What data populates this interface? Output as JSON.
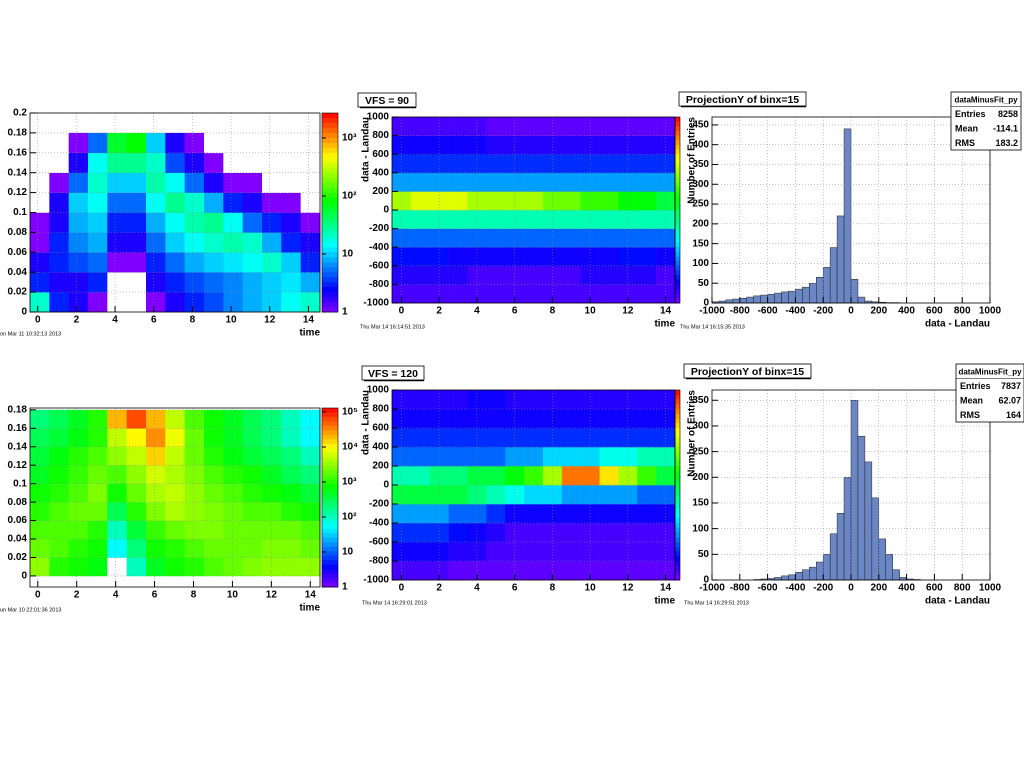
{
  "chart_data": [
    {
      "type": "heatmap",
      "xlim": [
        -0.4,
        14.6
      ],
      "xticks": [
        0,
        2,
        4,
        6,
        8,
        10,
        12,
        14
      ],
      "ylim": [
        0,
        0.2
      ],
      "yticks": [
        0,
        0.02,
        0.04,
        0.06,
        0.08,
        0.1,
        0.12,
        0.14,
        0.16,
        0.18,
        0.2
      ],
      "yrange": [
        0,
        0.18
      ],
      "xlabel": "time",
      "zlog": true,
      "zlim": [
        1,
        2700
      ],
      "zticks": [
        1,
        10,
        {
          "value": 100,
          "label": "10²"
        },
        {
          "value": 1000,
          "label": "10³"
        }
      ],
      "grid": true,
      "timestamp": "on Mar 11 10:32:13 2013",
      "z": [
        [
          20,
          3,
          2,
          1,
          0,
          0,
          1,
          2,
          3,
          4,
          6,
          8,
          10,
          15,
          20
        ],
        [
          3,
          2,
          2,
          3,
          0,
          0,
          2,
          3,
          4,
          5,
          6,
          8,
          10,
          12,
          8
        ],
        [
          2,
          3,
          4,
          5,
          1,
          1,
          3,
          5,
          8,
          10,
          12,
          15,
          20,
          10,
          3
        ],
        [
          1,
          3,
          6,
          8,
          2,
          2,
          5,
          10,
          15,
          20,
          25,
          20,
          8,
          3,
          2
        ],
        [
          1,
          2,
          8,
          10,
          3,
          3,
          8,
          15,
          25,
          30,
          15,
          5,
          3,
          2,
          1
        ],
        [
          0,
          2,
          10,
          15,
          5,
          5,
          15,
          30,
          20,
          8,
          3,
          2,
          1,
          1,
          0
        ],
        [
          0,
          1,
          5,
          20,
          10,
          10,
          25,
          15,
          5,
          2,
          1,
          1,
          0,
          0,
          0
        ],
        [
          0,
          0,
          2,
          15,
          30,
          30,
          20,
          4,
          2,
          1,
          0,
          0,
          0,
          0,
          0
        ],
        [
          0,
          0,
          1,
          5,
          60,
          80,
          10,
          2,
          1,
          0,
          0,
          0,
          0,
          0,
          0
        ]
      ]
    },
    {
      "type": "heatmap",
      "title": "VFS = 90",
      "xlim": [
        -0.5,
        14.5
      ],
      "xticks": [
        0,
        2,
        4,
        6,
        8,
        10,
        12,
        14
      ],
      "ylim": [
        -1000,
        1000
      ],
      "yticks": [
        -1000,
        -800,
        -600,
        -400,
        -200,
        0,
        200,
        400,
        600,
        800,
        1000
      ],
      "xlabel": "time",
      "ylabel": "data - Landau",
      "zlog": false,
      "zlim": [
        0,
        100
      ],
      "grid": true,
      "timestamp": "Thu Mar 14 16:14:51 2013",
      "z": [
        [
          5,
          5,
          5,
          5,
          5,
          5,
          5,
          5,
          5,
          5,
          5,
          5,
          5,
          5,
          5
        ],
        [
          8,
          8,
          8,
          8,
          5,
          5,
          5,
          5,
          5,
          5,
          8,
          8,
          8,
          8,
          5
        ],
        [
          12,
          12,
          12,
          10,
          10,
          10,
          10,
          10,
          10,
          10,
          10,
          10,
          12,
          12,
          10
        ],
        [
          20,
          20,
          20,
          20,
          20,
          20,
          20,
          20,
          20,
          20,
          20,
          20,
          20,
          20,
          20
        ],
        [
          40,
          40,
          40,
          40,
          40,
          40,
          40,
          40,
          40,
          40,
          40,
          40,
          40,
          40,
          40
        ],
        [
          70,
          75,
          75,
          75,
          70,
          70,
          70,
          70,
          65,
          65,
          60,
          60,
          55,
          55,
          50
        ],
        [
          25,
          25,
          25,
          25,
          25,
          25,
          25,
          25,
          25,
          25,
          25,
          25,
          25,
          25,
          25
        ],
        [
          15,
          15,
          15,
          15,
          15,
          15,
          15,
          15,
          15,
          15,
          15,
          15,
          15,
          15,
          15
        ],
        [
          10,
          10,
          10,
          10,
          10,
          8,
          8,
          8,
          8,
          8,
          8,
          8,
          8,
          8,
          8
        ],
        [
          5,
          5,
          5,
          5,
          5,
          3,
          3,
          3,
          3,
          3,
          3,
          3,
          3,
          3,
          3
        ]
      ]
    },
    {
      "type": "histogram",
      "title": "ProjectionY of binx=15",
      "color": "#6a86c4",
      "xlim": [
        -1000,
        1000
      ],
      "xticks": [
        -1000,
        -800,
        -600,
        -400,
        -200,
        0,
        200,
        400,
        600,
        800,
        1000
      ],
      "ylim": [
        0,
        470
      ],
      "yticks": [
        0,
        50,
        100,
        150,
        200,
        250,
        300,
        350,
        400,
        450
      ],
      "xlabel": "data - Landau",
      "ylabel": "Number of Entries",
      "grid": true,
      "timestamp": "Thu Mar 14 16:15:35 2013",
      "stats": {
        "name": "dataMinusFit_py",
        "rows": [
          {
            "label": "Entries",
            "value": 8258
          },
          {
            "label": "Mean",
            "value": -114.1
          },
          {
            "label": "RMS",
            "value": 183.2
          }
        ]
      },
      "bins": [
        -1000,
        -950,
        -900,
        -850,
        -800,
        -750,
        -700,
        -650,
        -600,
        -550,
        -500,
        -450,
        -400,
        -350,
        -300,
        -250,
        -200,
        -150,
        -100,
        -50,
        0,
        50,
        100,
        150,
        200,
        250,
        300,
        350,
        400,
        450,
        500,
        550,
        600,
        650,
        700,
        750,
        800,
        850,
        900,
        950,
        1000
      ],
      "values": [
        3,
        5,
        8,
        10,
        12,
        15,
        18,
        20,
        22,
        25,
        28,
        30,
        35,
        40,
        50,
        65,
        90,
        140,
        220,
        440,
        60,
        15,
        5,
        3,
        2,
        1,
        1,
        0,
        0,
        0,
        0,
        0,
        0,
        0,
        0,
        0,
        0,
        0,
        0,
        0
      ]
    },
    {
      "type": "heatmap",
      "xlim": [
        -0.4,
        14.5
      ],
      "xticks": [
        0,
        2,
        4,
        6,
        8,
        10,
        12,
        14
      ],
      "ylim": [
        -0.012,
        0.182
      ],
      "yticks": [
        0,
        0.02,
        0.04,
        0.06,
        0.08,
        0.1,
        0.12,
        0.14,
        0.16,
        0.18
      ],
      "yrange": [
        0,
        0.18
      ],
      "xlabel": "time",
      "zlog": true,
      "zlim": [
        1,
        130000
      ],
      "zticks": [
        1,
        10,
        {
          "value": 100,
          "label": "10²"
        },
        {
          "value": 1000,
          "label": "10³"
        },
        {
          "value": 10000,
          "label": "10⁴"
        },
        {
          "value": 100000,
          "label": "10⁵"
        }
      ],
      "grid": true,
      "timestamp": "un Mar 10 22:01:36 2013",
      "z": [
        [
          3000,
          1000,
          800,
          600,
          0,
          100,
          500,
          800,
          1000,
          1500,
          2000,
          2500,
          3000,
          3000,
          3000
        ],
        [
          2000,
          1500,
          1000,
          800,
          50,
          200,
          800,
          1000,
          1500,
          2000,
          2000,
          2000,
          2500,
          2500,
          2000
        ],
        [
          1500,
          1500,
          1500,
          1000,
          100,
          400,
          1200,
          2000,
          2500,
          2500,
          2000,
          2000,
          2000,
          2000,
          1500
        ],
        [
          1000,
          1500,
          2000,
          2000,
          300,
          1000,
          2500,
          4000,
          3000,
          2500,
          2000,
          1500,
          1500,
          1000,
          800
        ],
        [
          800,
          1000,
          1500,
          2500,
          800,
          2000,
          4000,
          5000,
          3000,
          2000,
          1500,
          1000,
          800,
          600,
          400
        ],
        [
          500,
          800,
          1200,
          2000,
          1500,
          3000,
          6000,
          4000,
          2500,
          1500,
          1000,
          800,
          500,
          300,
          200
        ],
        [
          400,
          600,
          1000,
          1500,
          3000,
          5000,
          15000,
          5000,
          2000,
          1000,
          600,
          400,
          300,
          200,
          100
        ],
        [
          300,
          400,
          600,
          1000,
          5000,
          10000,
          30000,
          8000,
          2000,
          800,
          500,
          300,
          200,
          100,
          50
        ],
        [
          200,
          300,
          500,
          1000,
          20000,
          60000,
          20000,
          5000,
          1500,
          800,
          500,
          300,
          200,
          100,
          50
        ]
      ]
    },
    {
      "type": "heatmap",
      "title": "VFS = 120",
      "xlim": [
        -0.5,
        14.5
      ],
      "xticks": [
        0,
        2,
        4,
        6,
        8,
        10,
        12,
        14
      ],
      "ylim": [
        -1000,
        1000
      ],
      "yticks": [
        -1000,
        -800,
        -600,
        -400,
        -200,
        0,
        200,
        400,
        600,
        800,
        1000
      ],
      "xlabel": "time",
      "ylabel": "data - Landau",
      "zlog": false,
      "zlim": [
        0,
        100
      ],
      "grid": true,
      "timestamp": "Thu Mar 14 16:29:01 2013",
      "z": [
        [
          5,
          5,
          5,
          3,
          3,
          3,
          3,
          3,
          3,
          3,
          3,
          3,
          3,
          3,
          3
        ],
        [
          10,
          10,
          10,
          8,
          8,
          5,
          5,
          5,
          5,
          5,
          5,
          5,
          5,
          5,
          5
        ],
        [
          15,
          15,
          15,
          12,
          10,
          8,
          5,
          5,
          5,
          5,
          5,
          5,
          5,
          5,
          5
        ],
        [
          25,
          25,
          25,
          20,
          20,
          15,
          10,
          10,
          10,
          10,
          10,
          10,
          10,
          10,
          10
        ],
        [
          50,
          50,
          50,
          50,
          45,
          40,
          35,
          30,
          30,
          25,
          25,
          25,
          25,
          20,
          20
        ],
        [
          40,
          40,
          45,
          45,
          50,
          50,
          55,
          60,
          70,
          90,
          90,
          80,
          70,
          60,
          50
        ],
        [
          20,
          20,
          20,
          20,
          20,
          20,
          25,
          25,
          30,
          30,
          30,
          35,
          35,
          40,
          40
        ],
        [
          15,
          15,
          15,
          15,
          15,
          15,
          15,
          15,
          15,
          15,
          15,
          15,
          15,
          15,
          15
        ],
        [
          10,
          10,
          10,
          10,
          10,
          10,
          10,
          10,
          10,
          10,
          10,
          10,
          10,
          10,
          10
        ],
        [
          8,
          8,
          8,
          8,
          10,
          10,
          8,
          8,
          8,
          8,
          8,
          8,
          8,
          8,
          8
        ]
      ]
    },
    {
      "type": "histogram",
      "title": "ProjectionY of binx=15",
      "color": "#6a86c4",
      "xlim": [
        -1000,
        1000
      ],
      "xticks": [
        -1000,
        -800,
        -600,
        -400,
        -200,
        0,
        200,
        400,
        600,
        800,
        1000
      ],
      "ylim": [
        0,
        370
      ],
      "yticks": [
        0,
        50,
        100,
        150,
        200,
        250,
        300,
        350
      ],
      "xlabel": "data - Landau",
      "ylabel": "Number of Entries",
      "grid": true,
      "timestamp": "Thu Mar 14 16:29:51 2013",
      "stats": {
        "name": "dataMinusFit_py",
        "rows": [
          {
            "label": "Entries",
            "value": 7837
          },
          {
            "label": "Mean",
            "value": 62.07
          },
          {
            "label": "RMS",
            "value": 164
          }
        ]
      },
      "bins": [
        -1000,
        -950,
        -900,
        -850,
        -800,
        -750,
        -700,
        -650,
        -600,
        -550,
        -500,
        -450,
        -400,
        -350,
        -300,
        -250,
        -200,
        -150,
        -100,
        -50,
        0,
        50,
        100,
        150,
        200,
        250,
        300,
        350,
        400,
        450,
        500,
        550,
        600,
        650,
        700,
        750,
        800,
        850,
        900,
        950,
        1000
      ],
      "values": [
        0,
        0,
        0,
        0,
        0,
        0,
        1,
        2,
        3,
        5,
        8,
        10,
        15,
        20,
        25,
        35,
        50,
        90,
        130,
        200,
        350,
        280,
        230,
        160,
        80,
        50,
        20,
        5,
        2,
        1,
        0,
        0,
        0,
        0,
        0,
        0,
        0,
        0,
        0,
        0
      ]
    }
  ]
}
